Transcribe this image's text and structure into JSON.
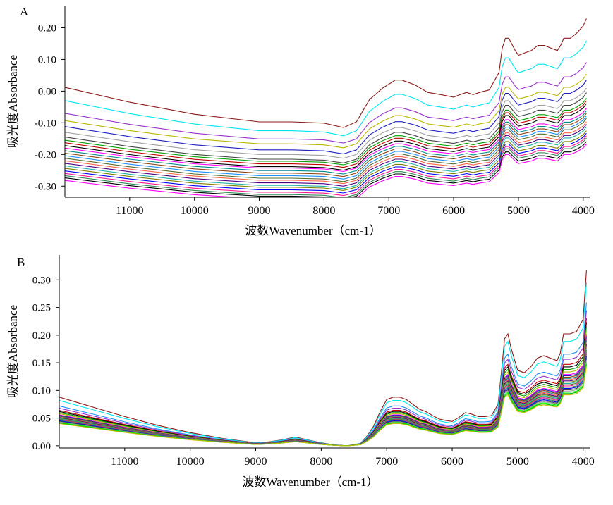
{
  "chart_data": [
    {
      "panel": "A",
      "type": "line",
      "xlabel": "波数Wavenumber（cm-1）",
      "ylabel": "吸光度Absorbance",
      "xlim": [
        12000,
        3900
      ],
      "ylim": [
        -0.335,
        0.27
      ],
      "x_ticks": [
        11000,
        10000,
        9000,
        8000,
        7000,
        6000,
        5000,
        4000
      ],
      "y_ticks": [
        "0.20",
        "0.10",
        "0.00",
        "-0.10",
        "-0.20",
        "-0.30"
      ],
      "y_tick_values": [
        0.2,
        0.1,
        0.0,
        -0.1,
        -0.2,
        -0.3
      ],
      "x": [
        12000,
        11000,
        10000,
        9000,
        8500,
        8000,
        7700,
        7500,
        7300,
        7100,
        6900,
        6800,
        6600,
        6400,
        6200,
        6000,
        5900,
        5800,
        5700,
        5600,
        5450,
        5300,
        5250,
        5200,
        5150,
        5050,
        5000,
        4900,
        4800,
        4700,
        4600,
        4500,
        4400,
        4350,
        4300,
        4250,
        4200,
        4100,
        4000,
        3950
      ],
      "shape_profile": [
        0,
        -0.03,
        -0.055,
        -0.07,
        -0.07,
        -0.073,
        -0.082,
        -0.07,
        -0.025,
        -0.002,
        0.015,
        0.015,
        0.005,
        -0.01,
        -0.015,
        -0.02,
        -0.015,
        -0.01,
        -0.015,
        -0.01,
        -0.005,
        0.03,
        0.08,
        0.1,
        0.1,
        0.075,
        0.065,
        0.07,
        0.075,
        0.085,
        0.085,
        0.08,
        0.075,
        0.085,
        0.1,
        0.1,
        0.1,
        0.11,
        0.125,
        0.14
      ],
      "series": [
        {
          "color": "#8b1a1a",
          "offset": 0.012,
          "gain": 1.55,
          "values": [
            0.012,
            -0.035,
            -0.073,
            -0.097,
            -0.097,
            -0.101,
            -0.115,
            -0.097,
            -0.027,
            0.009,
            0.035,
            0.035,
            0.02,
            -0.004,
            -0.011,
            -0.019,
            -0.011,
            -0.004,
            -0.011,
            -0.004,
            0.004,
            0.059,
            0.136,
            0.167,
            0.167,
            0.128,
            0.113,
            0.121,
            0.128,
            0.144,
            0.144,
            0.136,
            0.128,
            0.144,
            0.167,
            0.167,
            0.167,
            0.183,
            0.206,
            0.229
          ]
        },
        {
          "color": "#00e5ee",
          "offset": -0.03,
          "gain": 1.35,
          "values": [
            -0.03,
            -0.071,
            -0.104,
            -0.125,
            -0.125,
            -0.129,
            -0.141,
            -0.125,
            -0.064,
            -0.033,
            -0.01,
            -0.01,
            -0.023,
            -0.044,
            -0.05,
            -0.057,
            -0.05,
            -0.044,
            -0.05,
            -0.044,
            -0.037,
            0.011,
            0.078,
            0.105,
            0.105,
            0.071,
            0.058,
            0.065,
            0.071,
            0.085,
            0.085,
            0.078,
            0.071,
            0.085,
            0.105,
            0.105,
            0.105,
            0.119,
            0.139,
            0.159
          ]
        },
        {
          "color": "#9932cc",
          "offset": -0.07,
          "gain": 1.15,
          "values": [
            -0.07,
            -0.105,
            -0.133,
            -0.151,
            -0.151,
            -0.154,
            -0.164,
            -0.151,
            -0.099,
            -0.072,
            -0.053,
            -0.053,
            -0.064,
            -0.082,
            -0.087,
            -0.093,
            -0.087,
            -0.082,
            -0.087,
            -0.082,
            -0.076,
            -0.036,
            0.022,
            0.045,
            0.045,
            0.016,
            0.005,
            0.011,
            0.016,
            0.028,
            0.028,
            0.022,
            0.016,
            0.028,
            0.045,
            0.045,
            0.045,
            0.057,
            0.074,
            0.091
          ]
        },
        {
          "color": "#b8b800",
          "offset": -0.093,
          "gain": 1.05
        },
        {
          "color": "#2020c0",
          "offset": -0.112,
          "gain": 1.05
        },
        {
          "color": "#a0a0a0",
          "offset": -0.13,
          "gain": 1.0
        },
        {
          "color": "#444444",
          "offset": -0.145,
          "gain": 1.0
        },
        {
          "color": "#00a000",
          "offset": -0.155,
          "gain": 0.95
        },
        {
          "color": "#c00000",
          "offset": -0.163,
          "gain": 0.95
        },
        {
          "color": "#000000",
          "offset": -0.172,
          "gain": 0.95
        },
        {
          "color": "#ff00ff",
          "offset": -0.18,
          "gain": 0.9
        },
        {
          "color": "#008b8b",
          "offset": -0.188,
          "gain": 0.9
        },
        {
          "color": "#8b4513",
          "offset": -0.196,
          "gain": 0.9
        },
        {
          "color": "#1e90ff",
          "offset": -0.204,
          "gain": 0.9
        },
        {
          "color": "#556b2f",
          "offset": -0.212,
          "gain": 0.9
        },
        {
          "color": "#ff6347",
          "offset": -0.22,
          "gain": 0.88
        },
        {
          "color": "#4b0082",
          "offset": -0.228,
          "gain": 0.88
        },
        {
          "color": "#20b2aa",
          "offset": -0.236,
          "gain": 0.88
        },
        {
          "color": "#808000",
          "offset": -0.244,
          "gain": 0.85
        },
        {
          "color": "#0000ff",
          "offset": -0.252,
          "gain": 0.85
        },
        {
          "color": "#ff1493",
          "offset": -0.26,
          "gain": 0.85
        },
        {
          "color": "#2e8b57",
          "offset": -0.267,
          "gain": 0.85
        },
        {
          "color": "#000000",
          "offset": -0.274,
          "gain": 0.82
        },
        {
          "color": "#ff00ff",
          "offset": -0.282,
          "gain": 0.82
        }
      ]
    },
    {
      "panel": "B",
      "type": "line",
      "xlabel": "波数Wavenumber（cm-1）",
      "ylabel": "吸光度Absorbance",
      "xlim": [
        12000,
        3900
      ],
      "ylim": [
        -0.004,
        0.345
      ],
      "x_ticks": [
        11000,
        10000,
        9000,
        8000,
        7000,
        6000,
        5000,
        4000
      ],
      "y_ticks": [
        "0.30",
        "0.25",
        "0.20",
        "0.15",
        "0.10",
        "0.05",
        "0.00"
      ],
      "y_tick_values": [
        0.3,
        0.25,
        0.2,
        0.15,
        0.1,
        0.05,
        0.0
      ],
      "x": [
        12000,
        11500,
        11000,
        10500,
        10000,
        9500,
        9000,
        8800,
        8600,
        8400,
        8200,
        8000,
        7800,
        7600,
        7400,
        7300,
        7200,
        7100,
        7000,
        6900,
        6800,
        6700,
        6600,
        6500,
        6400,
        6300,
        6200,
        6100,
        6000,
        5900,
        5800,
        5700,
        5600,
        5500,
        5400,
        5300,
        5250,
        5200,
        5150,
        5100,
        5000,
        4900,
        4800,
        4700,
        4600,
        4500,
        4400,
        4350,
        4300,
        4200,
        4100,
        4000,
        3950
      ],
      "shape_profile": [
        1.0,
        0.8,
        0.6,
        0.42,
        0.27,
        0.15,
        0.06,
        0.08,
        0.12,
        0.18,
        0.12,
        0.06,
        0.02,
        0.0,
        0.05,
        0.2,
        0.4,
        0.7,
        0.95,
        1.0,
        1.0,
        0.95,
        0.85,
        0.75,
        0.7,
        0.62,
        0.55,
        0.52,
        0.5,
        0.58,
        0.68,
        0.65,
        0.6,
        0.6,
        0.62,
        0.85,
        1.5,
        2.2,
        2.3,
        2.0,
        1.55,
        1.5,
        1.62,
        1.8,
        1.85,
        1.8,
        1.75,
        1.9,
        2.3,
        2.3,
        2.35,
        2.6,
        3.6
      ],
      "series": [
        {
          "color": "#8b1a1a",
          "scale": 0.088
        },
        {
          "color": "#00e5ee",
          "scale": 0.082
        },
        {
          "color": "#1e90ff",
          "scale": 0.072
        },
        {
          "color": "#9932cc",
          "scale": 0.068
        },
        {
          "color": "#c00000",
          "scale": 0.064
        },
        {
          "color": "#000000",
          "scale": 0.062
        },
        {
          "color": "#00a000",
          "scale": 0.06
        },
        {
          "color": "#b8b800",
          "scale": 0.058
        },
        {
          "color": "#ff00ff",
          "scale": 0.056
        },
        {
          "color": "#2020c0",
          "scale": 0.055
        },
        {
          "color": "#8b4513",
          "scale": 0.054
        },
        {
          "color": "#008b8b",
          "scale": 0.053
        },
        {
          "color": "#ff6347",
          "scale": 0.052
        },
        {
          "color": "#4b0082",
          "scale": 0.051
        },
        {
          "color": "#808000",
          "scale": 0.05
        },
        {
          "color": "#20b2aa",
          "scale": 0.049
        },
        {
          "color": "#556b2f",
          "scale": 0.048
        },
        {
          "color": "#ff1493",
          "scale": 0.047
        },
        {
          "color": "#2e8b57",
          "scale": 0.046
        },
        {
          "color": "#0000ff",
          "scale": 0.045
        },
        {
          "color": "#444444",
          "scale": 0.044
        },
        {
          "color": "#a0a0a0",
          "scale": 0.043
        },
        {
          "color": "#00ff00",
          "scale": 0.042
        },
        {
          "color": "#00c000",
          "scale": 0.041
        },
        {
          "color": "#c0c000",
          "scale": 0.04
        }
      ]
    }
  ]
}
